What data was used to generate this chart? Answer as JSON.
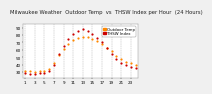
{
  "title": "Milwaukee Weather  Outdoor Temp  vs  THSW Index",
  "subtitle": " per Hour  (24 Hours)",
  "background_color": "#f0f0f0",
  "plot_bg": "#ffffff",
  "grid_color": "#aaaaaa",
  "xlim": [
    0.5,
    24.5
  ],
  "ylim": [
    22,
    95
  ],
  "yticks": [
    30,
    40,
    50,
    60,
    70,
    80,
    90
  ],
  "xtick_vals": [
    1,
    3,
    5,
    7,
    9,
    11,
    13,
    15,
    17,
    19,
    21,
    23
  ],
  "xtick_labels": [
    "1",
    "3",
    "5",
    "7",
    "9",
    "11",
    "13",
    "15",
    "17",
    "19",
    "21",
    "23"
  ],
  "hours": [
    1,
    2,
    3,
    4,
    5,
    6,
    7,
    8,
    9,
    10,
    11,
    12,
    13,
    14,
    15,
    16,
    17,
    18,
    19,
    20,
    21,
    22,
    23,
    24
  ],
  "temp": [
    32,
    31,
    30,
    31,
    32,
    34,
    42,
    53,
    61,
    68,
    73,
    76,
    78,
    77,
    75,
    72,
    68,
    63,
    58,
    52,
    47,
    44,
    42,
    40
  ],
  "thsw": [
    28,
    27,
    27,
    28,
    29,
    31,
    40,
    55,
    65,
    75,
    82,
    86,
    88,
    86,
    82,
    76,
    70,
    62,
    55,
    47,
    42,
    39,
    37,
    35
  ],
  "temp_color": "#ff8800",
  "thsw_color": "#cc0000",
  "black_color": "#111111",
  "legend_labels": [
    "Outdoor Temp",
    "THSW Index"
  ],
  "legend_colors": [
    "#ff8800",
    "#cc0000"
  ],
  "marker_size": 2.5,
  "title_fontsize": 3.8,
  "tick_fontsize": 3.0,
  "legend_fontsize": 2.8
}
